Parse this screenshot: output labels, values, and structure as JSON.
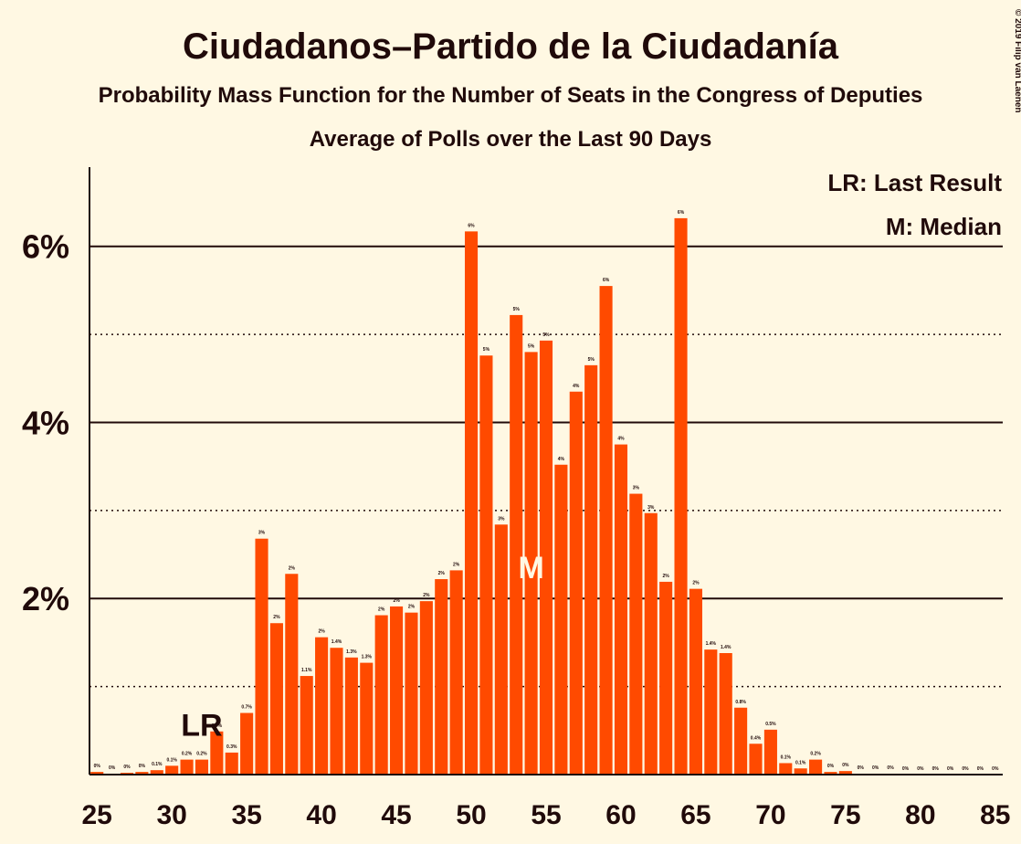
{
  "chart_data": {
    "type": "bar",
    "title": "Ciudadanos–Partido de la Ciudadanía",
    "subtitle": "Probability Mass Function for the Number of Seats in the Congress of Deputies",
    "subtitle2": "Average of Polls over the Last 90 Days",
    "copyright": "© 2019 Filip van Laenen",
    "legend": [
      "LR: Last Result",
      "M: Median"
    ],
    "annotations": [
      {
        "label": "LR",
        "x": 32
      },
      {
        "label": "M",
        "x": 54
      }
    ],
    "color": "#ff4a00",
    "x": [
      25,
      26,
      27,
      28,
      29,
      30,
      31,
      32,
      33,
      34,
      35,
      36,
      37,
      38,
      39,
      40,
      41,
      42,
      43,
      44,
      45,
      46,
      47,
      48,
      49,
      50,
      51,
      52,
      53,
      54,
      55,
      56,
      57,
      58,
      59,
      60,
      61,
      62,
      63,
      64,
      65,
      66,
      67,
      68,
      69,
      70,
      71,
      72,
      73,
      74,
      75,
      76,
      77,
      78,
      79,
      80,
      81,
      82,
      83,
      84,
      85
    ],
    "values": [
      0.03,
      0.01,
      0.02,
      0.03,
      0.05,
      0.1,
      0.17,
      0.17,
      0.49,
      0.25,
      0.7,
      2.68,
      1.72,
      2.28,
      1.12,
      1.56,
      1.44,
      1.33,
      1.27,
      1.81,
      1.91,
      1.84,
      1.97,
      2.22,
      2.32,
      6.17,
      4.76,
      2.84,
      5.22,
      4.8,
      4.93,
      3.52,
      4.35,
      4.65,
      5.55,
      3.75,
      3.19,
      2.97,
      2.19,
      6.32,
      2.11,
      1.42,
      1.38,
      0.76,
      0.35,
      0.51,
      0.13,
      0.07,
      0.17,
      0.03,
      0.04,
      0.01,
      0.01,
      0.01,
      0,
      0,
      0,
      0,
      0,
      0,
      0
    ],
    "value_labels": [
      "0%",
      "0%",
      "0%",
      "0%",
      "0.1%",
      "0.1%",
      "0.2%",
      "0.2%",
      "0.5%",
      "0.3%",
      "0.7%",
      "3%",
      "2%",
      "2%",
      "1.1%",
      "2%",
      "1.4%",
      "1.3%",
      "1.3%",
      "2%",
      "2%",
      "2%",
      "2%",
      "2%",
      "2%",
      "6%",
      "5%",
      "3%",
      "5%",
      "5%",
      "5%",
      "4%",
      "4%",
      "5%",
      "6%",
      "4%",
      "3%",
      "3%",
      "2%",
      "6%",
      "2%",
      "1.4%",
      "1.4%",
      "0.8%",
      "0.4%",
      "0.5%",
      "0.1%",
      "0.1%",
      "0.2%",
      "0%",
      "0%",
      "0%",
      "0%",
      "0%",
      "0%",
      "0%",
      "0%",
      "0%",
      "0%",
      "0%",
      "0%"
    ],
    "xlim": [
      24.5,
      85.5
    ],
    "xticks": [
      25,
      30,
      35,
      40,
      45,
      50,
      55,
      60,
      65,
      70,
      75,
      80,
      85
    ],
    "ylim": [
      0,
      6.9
    ],
    "yticks": [
      {
        "value": 2,
        "label": "2%"
      },
      {
        "value": 4,
        "label": "4%"
      },
      {
        "value": 6,
        "label": "6%"
      }
    ],
    "minor_grid": [
      1,
      3,
      5
    ]
  }
}
